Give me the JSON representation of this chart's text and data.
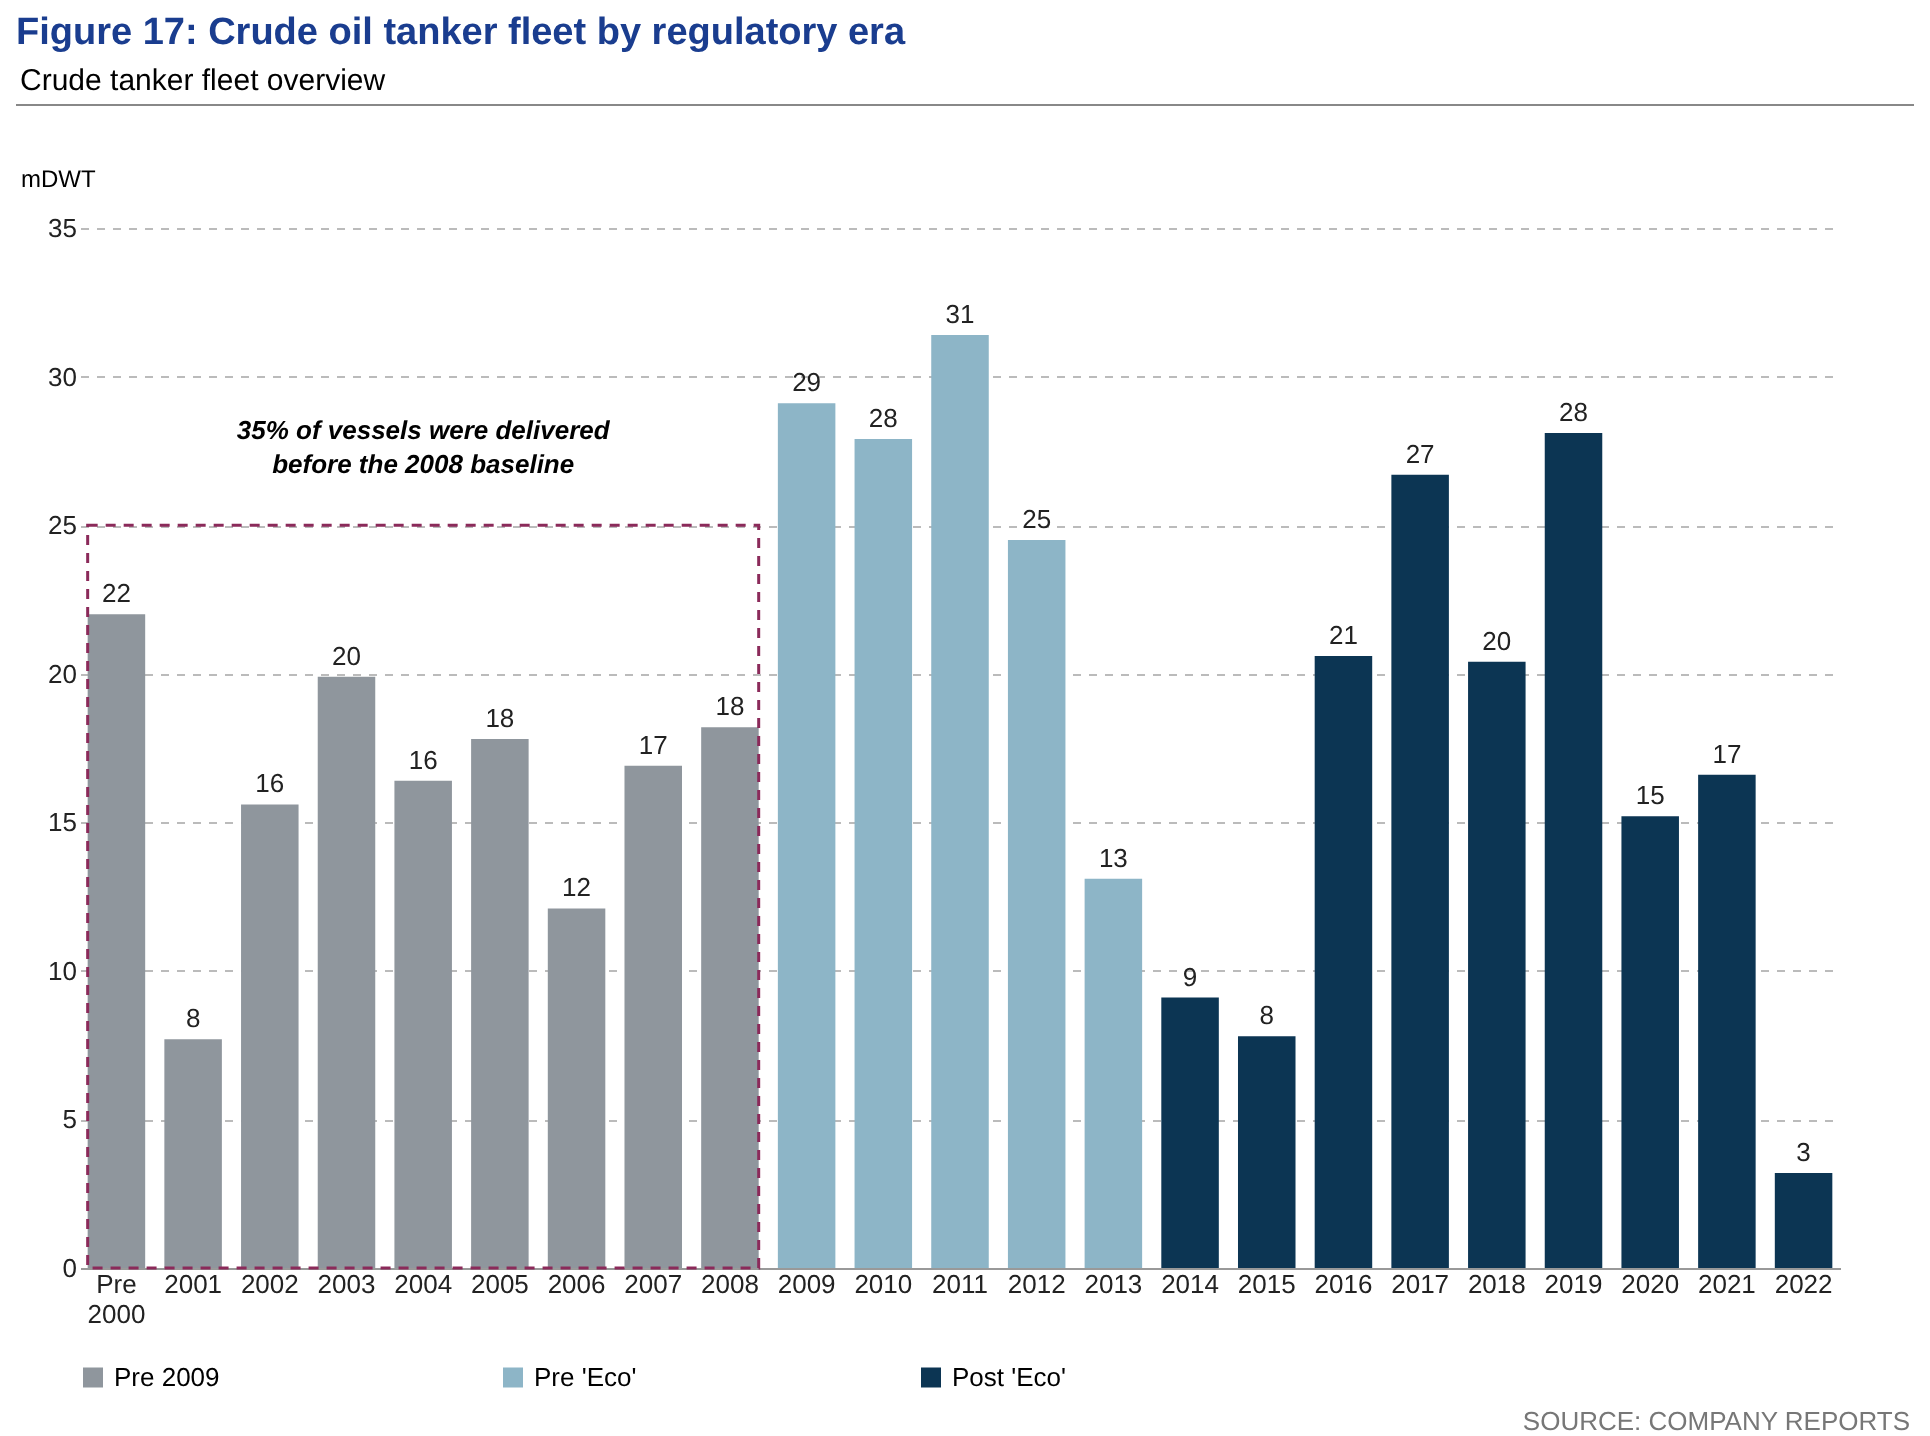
{
  "chart_data": {
    "type": "bar",
    "title": "Figure 17: Crude oil tanker fleet by regulatory era",
    "subtitle": "Crude tanker fleet overview",
    "ylabel": "mDWT",
    "categories": [
      "Pre 2000",
      "2001",
      "2002",
      "2003",
      "2004",
      "2005",
      "2006",
      "2007",
      "2008",
      "2009",
      "2010",
      "2011",
      "2012",
      "2013",
      "2014",
      "2015",
      "2016",
      "2017",
      "2018",
      "2019",
      "2020",
      "2021",
      "2022"
    ],
    "series": [
      {
        "name": "Pre 2009",
        "color": "#8f969d",
        "values": [
          22,
          7.7,
          15.6,
          19.9,
          16.4,
          17.8,
          12.1,
          16.9,
          18.2,
          null,
          null,
          null,
          null,
          null,
          null,
          null,
          null,
          null,
          null,
          null,
          null,
          null,
          null
        ],
        "value_labels": [
          "22",
          "8",
          "16",
          "20",
          "16",
          "18",
          "12",
          "17",
          "18",
          null,
          null,
          null,
          null,
          null,
          null,
          null,
          null,
          null,
          null,
          null,
          null,
          null,
          null
        ]
      },
      {
        "name": "Pre 'Eco'",
        "color": "#8db5c7",
        "values": [
          null,
          null,
          null,
          null,
          null,
          null,
          null,
          null,
          null,
          29.1,
          27.9,
          31.4,
          24.5,
          13.1,
          null,
          null,
          null,
          null,
          null,
          null,
          null,
          null,
          null
        ],
        "value_labels": [
          null,
          null,
          null,
          null,
          null,
          null,
          null,
          null,
          null,
          "29",
          "28",
          "31",
          "25",
          "13",
          null,
          null,
          null,
          null,
          null,
          null,
          null,
          null,
          null
        ]
      },
      {
        "name": "Post 'Eco'",
        "color": "#0c3553",
        "values": [
          null,
          null,
          null,
          null,
          null,
          null,
          null,
          null,
          null,
          null,
          null,
          null,
          null,
          null,
          9.1,
          7.8,
          20.6,
          26.7,
          20.4,
          28.1,
          15.2,
          16.6,
          3.2
        ],
        "value_labels": [
          null,
          null,
          null,
          null,
          null,
          null,
          null,
          null,
          null,
          null,
          null,
          null,
          null,
          null,
          "9",
          "8",
          "21",
          "27",
          "20",
          "28",
          "15",
          "17",
          "3"
        ]
      }
    ],
    "ylim": [
      0,
      35
    ],
    "yticks": [
      0,
      5,
      10,
      15,
      20,
      25,
      30,
      35
    ],
    "grid": "y",
    "legend": "bottom",
    "annotations": [
      "35% of vessels were delivered before the 2008 baseline",
      "SOURCE: COMPANY REPORTS"
    ]
  }
}
